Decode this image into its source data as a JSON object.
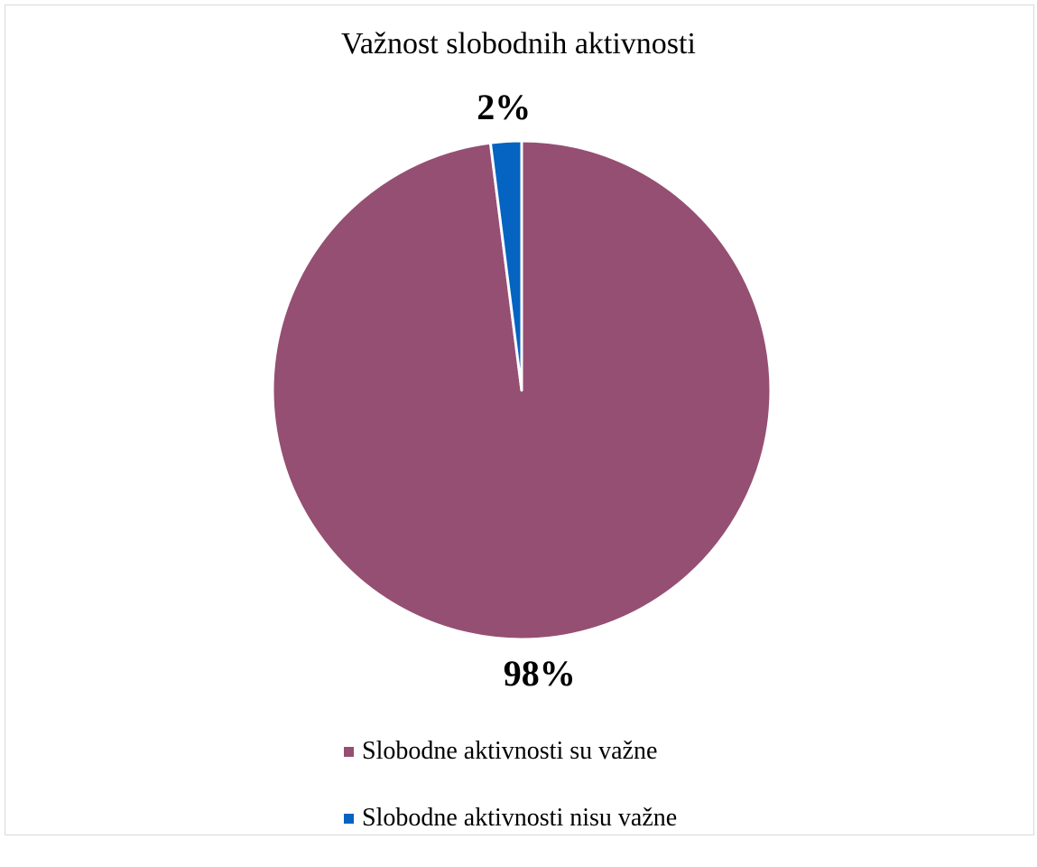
{
  "chart_data": {
    "type": "pie",
    "title": "Važnost slobodnih aktivnosti",
    "categories": [
      "Slobodne aktivnosti su važne",
      "Slobodne aktivnosti nisu važne"
    ],
    "values": [
      98,
      2
    ],
    "data_labels": [
      "98%",
      "2%"
    ],
    "colors": [
      "#954F72",
      "#0563C1"
    ],
    "legend_position": "bottom"
  }
}
